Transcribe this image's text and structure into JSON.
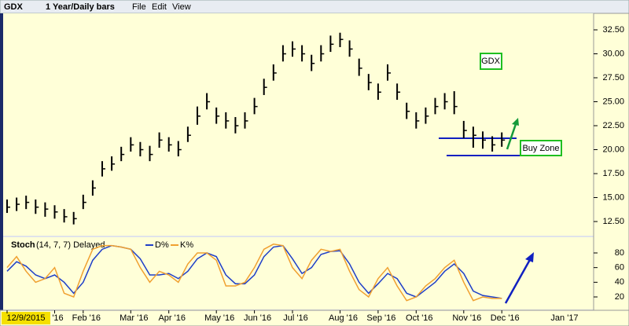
{
  "toolbar": {
    "symbol": "GDX",
    "period": "1 Year/Daily bars",
    "menus": [
      "File",
      "Edit",
      "View"
    ]
  },
  "chart_data": [
    {
      "type": "bar",
      "title": "GDX",
      "annotation": "Buy Zone",
      "color": "#000000",
      "categories": [
        "12/9/2015",
        null,
        null,
        null,
        null,
        "'16",
        null,
        null,
        "Feb '16",
        null,
        null,
        null,
        null,
        "Mar '16",
        null,
        null,
        null,
        "Apr '16",
        null,
        null,
        null,
        null,
        "May '16",
        null,
        null,
        null,
        "Jun '16",
        null,
        null,
        null,
        "Jul '16",
        null,
        null,
        null,
        null,
        "Aug '16",
        null,
        null,
        null,
        "Sep '16",
        null,
        null,
        null,
        "Oct '16",
        null,
        null,
        null,
        null,
        "Nov '16",
        null,
        null,
        null,
        "Dec '16"
      ],
      "end_label": "Jan '17",
      "high": [
        14.8,
        15.0,
        15.2,
        14.8,
        14.5,
        14.2,
        13.8,
        13.5,
        15.3,
        16.8,
        18.8,
        19.3,
        20.3,
        21.3,
        20.8,
        20.4,
        21.8,
        21.3,
        20.9,
        22.4,
        24.5,
        25.9,
        24.4,
        23.9,
        23.4,
        23.9,
        25.4,
        27.4,
        28.9,
        30.9,
        31.3,
        30.9,
        29.9,
        30.9,
        31.9,
        32.2,
        31.4,
        29.5,
        27.9,
        26.9,
        28.9,
        26.9,
        24.9,
        23.9,
        24.4,
        25.4,
        25.9,
        26.1,
        23.0,
        22.4,
        21.9,
        21.4,
        21.8
      ],
      "low": [
        13.4,
        13.6,
        13.8,
        13.3,
        13.0,
        12.8,
        12.4,
        12.2,
        13.8,
        15.2,
        17.2,
        17.8,
        18.8,
        19.8,
        19.3,
        18.8,
        20.2,
        19.8,
        19.3,
        20.8,
        22.6,
        24.2,
        22.7,
        22.2,
        21.7,
        22.2,
        23.7,
        25.7,
        27.2,
        29.2,
        29.7,
        29.2,
        28.2,
        29.2,
        30.2,
        30.7,
        29.7,
        27.7,
        26.2,
        25.2,
        27.2,
        25.2,
        23.2,
        22.2,
        22.7,
        23.7,
        24.2,
        23.7,
        21.2,
        20.2,
        20.1,
        19.8,
        20.3
      ],
      "values": [
        14.0,
        14.3,
        14.5,
        14.0,
        13.8,
        13.5,
        13.0,
        12.8,
        14.5,
        16.0,
        18.0,
        18.5,
        19.5,
        20.5,
        20.0,
        19.5,
        21.0,
        20.5,
        20.0,
        21.5,
        23.5,
        25.0,
        23.5,
        23.0,
        22.5,
        23.0,
        24.5,
        26.5,
        28.0,
        30.0,
        30.5,
        30.0,
        29.0,
        30.0,
        31.0,
        31.5,
        30.5,
        28.5,
        27.0,
        26.0,
        28.0,
        26.0,
        24.0,
        23.0,
        23.5,
        24.5,
        25.0,
        24.5,
        22.0,
        21.5,
        21.0,
        20.5,
        21.0
      ],
      "ylim": [
        11.19,
        34.14
      ],
      "yticks": [
        {
          "value": 12.5,
          "label": "12.50"
        },
        {
          "value": 15,
          "label": "15.00"
        },
        {
          "value": 17.5,
          "label": "17.50"
        },
        {
          "value": 20,
          "label": "20.00"
        },
        {
          "value": 22.5,
          "label": "22.50"
        },
        {
          "value": 25,
          "label": "25.00"
        },
        {
          "value": 27.5,
          "label": "27.50"
        },
        {
          "value": 30,
          "label": "30.00"
        },
        {
          "value": 32.5,
          "label": "32.50"
        }
      ]
    },
    {
      "type": "line",
      "title": "Stoch",
      "subtitle": "(14, 7, 7) Delayed",
      "series": [
        {
          "name": "D%",
          "color": "#1f3fc8",
          "values": [
            55,
            68,
            62,
            50,
            45,
            50,
            40,
            25,
            40,
            70,
            85,
            90,
            88,
            85,
            72,
            50,
            50,
            52,
            45,
            55,
            72,
            80,
            75,
            50,
            38,
            38,
            50,
            75,
            88,
            90,
            72,
            52,
            60,
            78,
            82,
            83,
            65,
            40,
            25,
            38,
            52,
            45,
            25,
            20,
            30,
            40,
            55,
            65,
            52,
            28,
            22,
            20,
            18
          ]
        },
        {
          "name": "K%",
          "color": "#f0a030",
          "values": [
            60,
            75,
            55,
            40,
            45,
            60,
            25,
            20,
            55,
            85,
            90,
            90,
            88,
            85,
            60,
            40,
            55,
            50,
            40,
            65,
            80,
            80,
            70,
            35,
            35,
            40,
            60,
            85,
            92,
            90,
            60,
            45,
            70,
            85,
            82,
            85,
            55,
            30,
            20,
            45,
            60,
            35,
            15,
            20,
            35,
            45,
            60,
            70,
            40,
            15,
            20,
            18,
            18
          ]
        }
      ],
      "ylim": [
        1.8,
        98.2
      ],
      "yticks": [
        20,
        40,
        60,
        80
      ]
    }
  ]
}
